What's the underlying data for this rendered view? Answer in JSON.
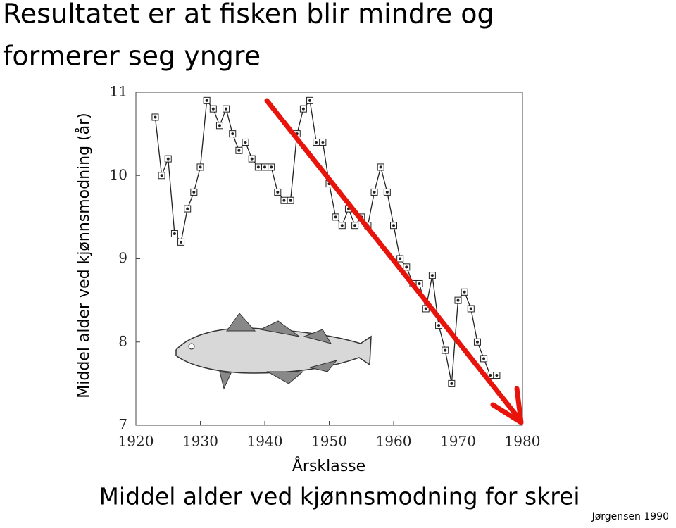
{
  "title": "Resultatet er at fisken blir mindre og formerer seg yngre",
  "chart_data": {
    "type": "line",
    "y_label": "Middel alder ved kjønnsmodning (år)",
    "x_label": "Årsklasse",
    "x": [
      1923,
      1924,
      1925,
      1926,
      1927,
      1928,
      1929,
      1930,
      1931,
      1932,
      1933,
      1934,
      1935,
      1936,
      1937,
      1938,
      1939,
      1940,
      1941,
      1942,
      1943,
      1944,
      1945,
      1946,
      1947,
      1948,
      1949,
      1950,
      1951,
      1952,
      1953,
      1954,
      1955,
      1956,
      1957,
      1958,
      1959,
      1960,
      1961,
      1962,
      1963,
      1964,
      1965,
      1966,
      1967,
      1968,
      1969,
      1970,
      1971,
      1972,
      1973,
      1974,
      1975,
      1976
    ],
    "series": [
      {
        "color": "#222222",
        "values": [
          10.7,
          10.0,
          10.2,
          9.3,
          9.2,
          9.6,
          9.8,
          10.1,
          10.9,
          10.8,
          10.6,
          10.8,
          10.5,
          10.3,
          10.4,
          10.2,
          10.1,
          10.1,
          10.1,
          9.8,
          9.7,
          9.7,
          10.5,
          10.8,
          10.9,
          10.4,
          10.4,
          9.9,
          9.5,
          9.4,
          9.6,
          9.4,
          9.5,
          9.4,
          9.8,
          10.1,
          9.8,
          9.4,
          9.0,
          8.9,
          8.7,
          8.7,
          8.4,
          8.8,
          8.2,
          7.9,
          7.5,
          8.5,
          8.6,
          8.4,
          8.0,
          7.8,
          7.6,
          7.6
        ]
      }
    ],
    "xlim": [
      1920,
      1980
    ],
    "xticks": [
      1920,
      1930,
      1940,
      1950,
      1960,
      1970,
      1980
    ],
    "ylim": [
      7,
      11
    ],
    "yticks": [
      7,
      8,
      9,
      10,
      11
    ],
    "grid": false
  },
  "caption": "Middel alder ved kjønnsmodning for skrei",
  "source": "Jørgensen 1990"
}
